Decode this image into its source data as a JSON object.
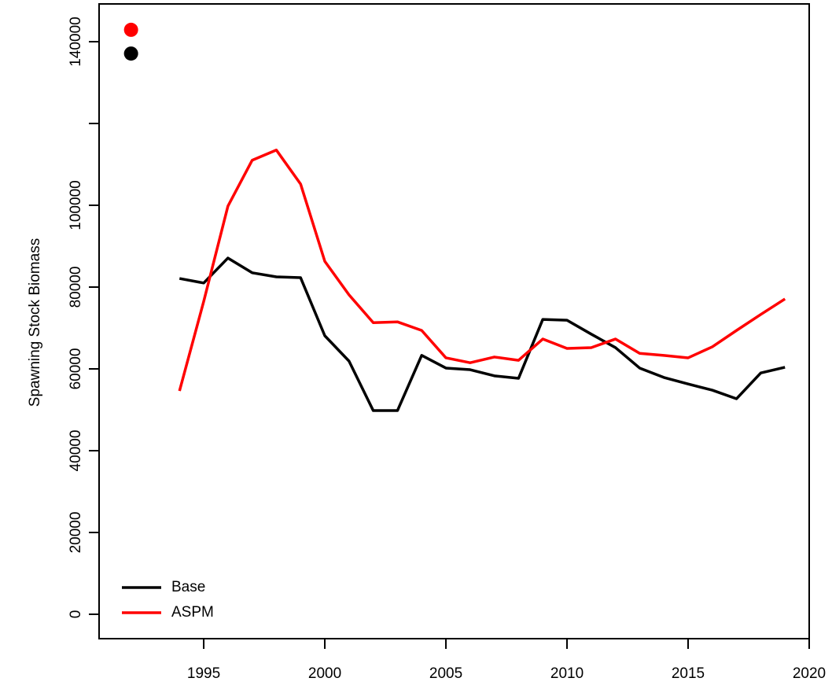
{
  "chart_data": {
    "type": "line",
    "y_label": "Spawning Stock Biomass",
    "x": [
      1994,
      1995,
      1996,
      1997,
      1998,
      1999,
      2000,
      2001,
      2002,
      2003,
      2004,
      2005,
      2006,
      2007,
      2008,
      2009,
      2010,
      2011,
      2012,
      2013,
      2014,
      2015,
      2016,
      2017,
      2018,
      2019
    ],
    "series": [
      {
        "name": "Base",
        "color": "#000000",
        "values": [
          82100,
          81000,
          87100,
          83500,
          82500,
          82300,
          68100,
          61900,
          49800,
          49800,
          63300,
          60200,
          59800,
          58300,
          57700,
          72100,
          71900,
          68500,
          65200,
          60200,
          57900,
          56300,
          54800,
          52700,
          59000,
          60400
        ],
        "point": {
          "x": 1992,
          "y": 137100
        }
      },
      {
        "name": "ASPM",
        "color": "#ff0000",
        "values": [
          54600,
          76500,
          99800,
          111000,
          113500,
          105200,
          86300,
          78100,
          71300,
          71500,
          69400,
          62700,
          61500,
          62900,
          62100,
          67300,
          65000,
          65200,
          67300,
          63800,
          63300,
          62700,
          65400,
          69400,
          73300,
          77100
        ],
        "point": {
          "x": 1992,
          "y": 142900
        }
      }
    ],
    "xlim": [
      1990.68,
      2020.0
    ],
    "xticks": [
      1995,
      2000,
      2005,
      2010,
      2015,
      2020
    ],
    "ylim": [
      -5960,
      149230
    ],
    "yticks": [
      0,
      20000,
      40000,
      60000,
      80000,
      100000,
      {
        "value": 120000,
        "label": null
      },
      140000
    ],
    "legend": "bottom-left",
    "grid": false
  }
}
